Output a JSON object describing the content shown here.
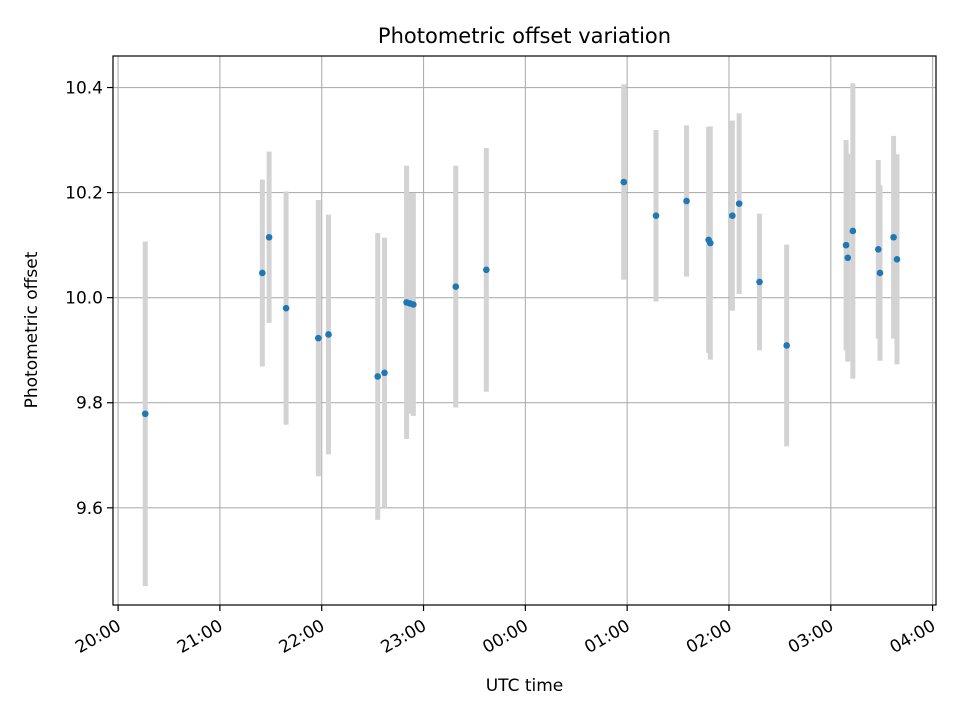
{
  "chart_data": {
    "type": "scatter",
    "title": "Photometric offset variation",
    "xlabel": "UTC time",
    "ylabel": "Photometric offset",
    "xlim": [
      "19:57",
      "04:02"
    ],
    "ylim": [
      9.415,
      10.46
    ],
    "x_ticks": [
      "20:00",
      "21:00",
      "22:00",
      "23:00",
      "00:00",
      "01:00",
      "02:00",
      "03:00",
      "04:00"
    ],
    "y_ticks": [
      9.6,
      9.8,
      10.0,
      10.2,
      10.4
    ],
    "y_tick_labels": [
      "9.6",
      "9.8",
      "10.0",
      "10.2",
      "10.4"
    ],
    "grid": true,
    "colors": {
      "point": "#1f77b4",
      "errorbar": "#d3d3d3",
      "grid": "#b0b0b0"
    },
    "series": [
      {
        "points": [
          {
            "t": "20:16",
            "y": 9.779,
            "err": 0.328
          },
          {
            "t": "21:25",
            "y": 10.047,
            "err": 0.178
          },
          {
            "t": "21:29",
            "y": 10.115,
            "err": 0.163
          },
          {
            "t": "21:39",
            "y": 9.98,
            "err": 0.222
          },
          {
            "t": "21:58",
            "y": 9.923,
            "err": 0.263
          },
          {
            "t": "22:04",
            "y": 9.93,
            "err": 0.228
          },
          {
            "t": "22:33",
            "y": 9.85,
            "err": 0.273
          },
          {
            "t": "22:37",
            "y": 9.857,
            "err": 0.257
          },
          {
            "t": "22:50",
            "y": 9.991,
            "err": 0.26
          },
          {
            "t": "22:52",
            "y": 9.989,
            "err": 0.21
          },
          {
            "t": "22:54",
            "y": 9.987,
            "err": 0.212
          },
          {
            "t": "23:19",
            "y": 10.021,
            "err": 0.23
          },
          {
            "t": "23:37",
            "y": 10.053,
            "err": 0.232
          },
          {
            "t": "00:58",
            "y": 10.22,
            "err": 0.186
          },
          {
            "t": "01:17",
            "y": 10.156,
            "err": 0.163
          },
          {
            "t": "01:35",
            "y": 10.184,
            "err": 0.144
          },
          {
            "t": "01:48",
            "y": 10.11,
            "err": 0.215
          },
          {
            "t": "01:49",
            "y": 10.104,
            "err": 0.222
          },
          {
            "t": "02:02",
            "y": 10.156,
            "err": 0.181
          },
          {
            "t": "02:06",
            "y": 10.179,
            "err": 0.172
          },
          {
            "t": "02:18",
            "y": 10.03,
            "err": 0.13
          },
          {
            "t": "02:34",
            "y": 9.909,
            "err": 0.192
          },
          {
            "t": "03:09",
            "y": 10.1,
            "err": 0.2
          },
          {
            "t": "03:10",
            "y": 10.076,
            "err": 0.198
          },
          {
            "t": "03:13",
            "y": 10.127,
            "err": 0.281
          },
          {
            "t": "03:28",
            "y": 10.092,
            "err": 0.17
          },
          {
            "t": "03:29",
            "y": 10.047,
            "err": 0.167
          },
          {
            "t": "03:37",
            "y": 10.115,
            "err": 0.193
          },
          {
            "t": "03:39",
            "y": 10.073,
            "err": 0.2
          }
        ]
      }
    ]
  }
}
